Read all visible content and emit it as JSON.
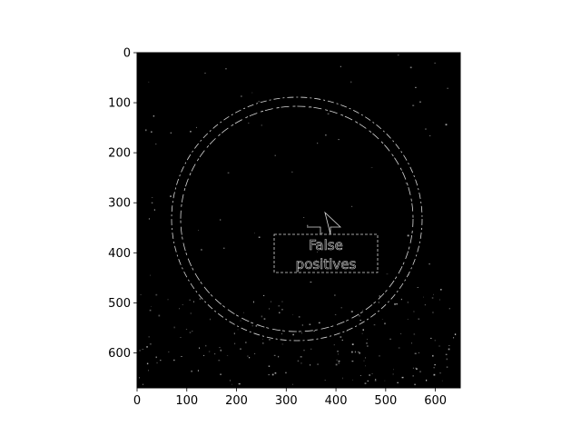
{
  "figure": {
    "image_extent": {
      "x": [
        0,
        650
      ],
      "y": [
        670,
        0
      ]
    },
    "x_ticks": [
      {
        "value": 0,
        "label": "0"
      },
      {
        "value": 100,
        "label": "100"
      },
      {
        "value": 200,
        "label": "200"
      },
      {
        "value": 300,
        "label": "300"
      },
      {
        "value": 400,
        "label": "400"
      },
      {
        "value": 500,
        "label": "500"
      },
      {
        "value": 600,
        "label": "600"
      }
    ],
    "y_ticks": [
      {
        "value": 0,
        "label": "0"
      },
      {
        "value": 100,
        "label": "100"
      },
      {
        "value": 200,
        "label": "200"
      },
      {
        "value": 300,
        "label": "300"
      },
      {
        "value": 400,
        "label": "400"
      },
      {
        "value": 500,
        "label": "500"
      },
      {
        "value": 600,
        "label": "600"
      }
    ],
    "annotation": {
      "line1": "False",
      "line2": "positives"
    },
    "colors": {
      "image_background": "#000000",
      "edges": "#d8d8d8",
      "axes": "#000000",
      "page_background": "#ffffff"
    }
  }
}
